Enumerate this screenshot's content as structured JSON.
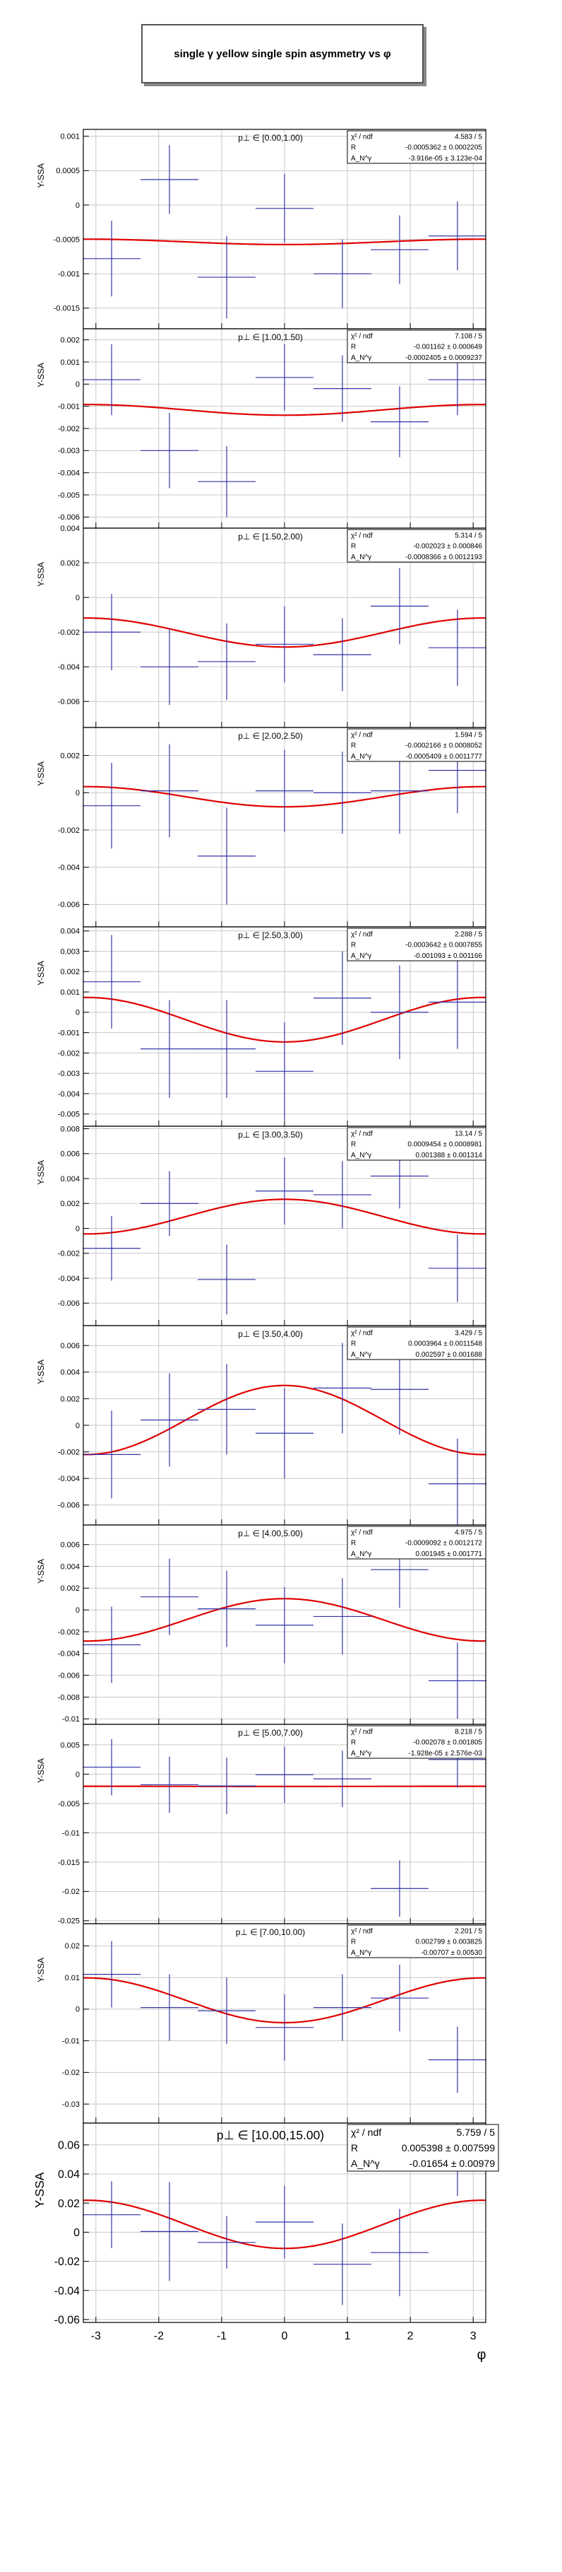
{
  "page_title": "single γ yellow single spin asymmetry vs φ",
  "xlabel": "φ",
  "colors": {
    "data": "#3333aa",
    "fit": "#e00000",
    "grid": "#c8c8c8",
    "frame": "#000000"
  },
  "chart_data": [
    {
      "type": "scatter",
      "bin_label": "p⊥ ∈ [0.00,1.00)",
      "ylabel": "Y-SSA",
      "ylim": [
        -0.0018,
        0.0011
      ],
      "yticks": [
        -0.0015,
        -0.001,
        -0.0005,
        0,
        0.0005,
        0.001
      ],
      "ytick_labels": [
        "-0.0015",
        "-0.001",
        "-0.0005",
        "0",
        "0.0005",
        "0.001"
      ],
      "stats": [
        [
          "χ² / ndf",
          "4.583 / 5"
        ],
        [
          "R",
          "-0.0005362 ± 0.0002205"
        ],
        [
          "A_N^γ",
          "-3.916e-05 ± 3.123e-04"
        ]
      ],
      "fit": {
        "R": -0.0005362,
        "A": -3.916e-05
      },
      "points": [
        {
          "x": -2.75,
          "y": -0.00078,
          "ey": 0.00055
        },
        {
          "x": -1.83,
          "y": 0.00037,
          "ey": 0.0005
        },
        {
          "x": -0.92,
          "y": -0.00105,
          "ey": 0.0006
        },
        {
          "x": 0,
          "y": -5e-05,
          "ey": 0.0005
        },
        {
          "x": 0.92,
          "y": -0.001,
          "ey": 0.0005
        },
        {
          "x": 1.83,
          "y": -0.00065,
          "ey": 0.0005
        },
        {
          "x": 2.75,
          "y": -0.00045,
          "ey": 0.0005
        }
      ]
    },
    {
      "type": "scatter",
      "bin_label": "p⊥ ∈ [1.00,1.50)",
      "ylabel": "Y-SSA",
      "ylim": [
        -0.0065,
        0.0025
      ],
      "yticks": [
        -0.006,
        -0.005,
        -0.004,
        -0.003,
        -0.002,
        -0.001,
        0,
        0.001,
        0.002
      ],
      "ytick_labels": [
        "-0.006",
        "-0.005",
        "-0.004",
        "-0.003",
        "-0.002",
        "-0.001",
        "0",
        "0.001",
        "0.002"
      ],
      "stats": [
        [
          "χ² / ndf",
          "7.108 / 5"
        ],
        [
          "R",
          "-0.001162 ± 0.000649"
        ],
        [
          "A_N^γ",
          "-0.0002405 ± 0.0009237"
        ]
      ],
      "fit": {
        "R": -0.001162,
        "A": -0.0002405
      },
      "points": [
        {
          "x": -2.75,
          "y": 0.0002,
          "ey": 0.0016
        },
        {
          "x": -1.83,
          "y": -0.003,
          "ey": 0.0017
        },
        {
          "x": -0.92,
          "y": -0.0044,
          "ey": 0.0016
        },
        {
          "x": 0,
          "y": 0.0003,
          "ey": 0.0015
        },
        {
          "x": 0.92,
          "y": -0.0002,
          "ey": 0.0015
        },
        {
          "x": 1.83,
          "y": -0.0017,
          "ey": 0.0016
        },
        {
          "x": 2.75,
          "y": 0.0002,
          "ey": 0.0016
        }
      ]
    },
    {
      "type": "scatter",
      "bin_label": "p⊥ ∈ [1.50,2.00)",
      "ylabel": "Y-SSA",
      "ylim": [
        -0.0075,
        0.004
      ],
      "yticks": [
        -0.006,
        -0.004,
        -0.002,
        0,
        0.002,
        0.004
      ],
      "ytick_labels": [
        "-0.006",
        "-0.004",
        "-0.002",
        "0",
        "0.002",
        "0.004"
      ],
      "stats": [
        [
          "χ² / ndf",
          "5.314 / 5"
        ],
        [
          "R",
          "-0.002023 ± 0.000846"
        ],
        [
          "A_N^γ",
          "-0.0008366 ± 0.0012193"
        ]
      ],
      "fit": {
        "R": -0.002023,
        "A": -0.0008366
      },
      "points": [
        {
          "x": -2.75,
          "y": -0.002,
          "ey": 0.0022
        },
        {
          "x": -1.83,
          "y": -0.004,
          "ey": 0.0022
        },
        {
          "x": -0.92,
          "y": -0.0037,
          "ey": 0.0022
        },
        {
          "x": 0,
          "y": -0.0027,
          "ey": 0.0022
        },
        {
          "x": 0.92,
          "y": -0.0033,
          "ey": 0.0021
        },
        {
          "x": 1.83,
          "y": -0.0005,
          "ey": 0.0022
        },
        {
          "x": 2.75,
          "y": -0.0029,
          "ey": 0.0022
        }
      ]
    },
    {
      "type": "scatter",
      "bin_label": "p⊥ ∈ [2.00,2.50)",
      "ylabel": "Y-SSA",
      "ylim": [
        -0.0072,
        0.0035
      ],
      "yticks": [
        -0.006,
        -0.004,
        -0.002,
        0,
        0.002
      ],
      "ytick_labels": [
        "-0.006",
        "-0.004",
        "-0.002",
        "0",
        "0.002"
      ],
      "stats": [
        [
          "χ² / ndf",
          "1.594 / 5"
        ],
        [
          "R",
          "-0.0002166 ± 0.0008052"
        ],
        [
          "A_N^γ",
          "-0.0005409 ± 0.0011777"
        ]
      ],
      "fit": {
        "R": -0.0002166,
        "A": -0.0005409
      },
      "points": [
        {
          "x": -2.75,
          "y": -0.0007,
          "ey": 0.0023
        },
        {
          "x": -1.83,
          "y": 0.0001,
          "ey": 0.0025
        },
        {
          "x": -0.92,
          "y": -0.0034,
          "ey": 0.0026
        },
        {
          "x": 0,
          "y": 0.0001,
          "ey": 0.0022
        },
        {
          "x": 0.92,
          "y": 0,
          "ey": 0.0022
        },
        {
          "x": 1.83,
          "y": 0.0001,
          "ey": 0.0023
        },
        {
          "x": 2.75,
          "y": 0.0012,
          "ey": 0.0023
        }
      ]
    },
    {
      "type": "scatter",
      "bin_label": "p⊥ ∈ [2.50,3.00)",
      "ylabel": "Y-SSA",
      "ylim": [
        -0.0056,
        0.0042
      ],
      "yticks": [
        -0.005,
        -0.004,
        -0.003,
        -0.002,
        -0.001,
        0,
        0.001,
        0.002,
        0.003,
        0.004
      ],
      "ytick_labels": [
        "-0.005",
        "-0.004",
        "-0.003",
        "-0.002",
        "-0.001",
        "0",
        "0.001",
        "0.002",
        "0.003",
        "0.004"
      ],
      "stats": [
        [
          "χ² / ndf",
          "2.288 / 5"
        ],
        [
          "R",
          "-0.0003642 ± 0.0007855"
        ],
        [
          "A_N^γ",
          "-0.001093 ± 0.001166"
        ]
      ],
      "fit": {
        "R": -0.0003642,
        "A": -0.001093
      },
      "points": [
        {
          "x": -2.75,
          "y": 0.0015,
          "ey": 0.0023
        },
        {
          "x": -1.83,
          "y": -0.0018,
          "ey": 0.0024
        },
        {
          "x": -0.92,
          "y": -0.0018,
          "ey": 0.0024
        },
        {
          "x": 0,
          "y": -0.0029,
          "ey": 0.0024
        },
        {
          "x": 0.92,
          "y": 0.0007,
          "ey": 0.0023
        },
        {
          "x": 1.83,
          "y": 0,
          "ey": 0.0023
        },
        {
          "x": 2.75,
          "y": 0.0005,
          "ey": 0.0023
        }
      ]
    },
    {
      "type": "scatter",
      "bin_label": "p⊥ ∈ [3.00,3.50)",
      "ylabel": "Y-SSA",
      "ylim": [
        -0.0078,
        0.0082
      ],
      "yticks": [
        -0.006,
        -0.004,
        -0.002,
        0,
        0.002,
        0.004,
        0.006,
        0.008
      ],
      "ytick_labels": [
        "-0.006",
        "-0.004",
        "-0.002",
        "0",
        "0.002",
        "0.004",
        "0.006",
        "0.008"
      ],
      "stats": [
        [
          "χ² / ndf",
          "13.14 / 5"
        ],
        [
          "R",
          "0.0009454 ± 0.0008981"
        ],
        [
          "A_N^γ",
          "0.001388 ± 0.001314"
        ]
      ],
      "fit": {
        "R": 0.0009454,
        "A": 0.001388
      },
      "points": [
        {
          "x": -2.75,
          "y": -0.0016,
          "ey": 0.0026
        },
        {
          "x": -1.83,
          "y": 0.002,
          "ey": 0.0026
        },
        {
          "x": -0.92,
          "y": -0.0041,
          "ey": 0.0028
        },
        {
          "x": 0,
          "y": 0.003,
          "ey": 0.0027
        },
        {
          "x": 0.92,
          "y": 0.0027,
          "ey": 0.0027
        },
        {
          "x": 1.83,
          "y": 0.0042,
          "ey": 0.0026
        },
        {
          "x": 2.75,
          "y": -0.0032,
          "ey": 0.0027
        }
      ]
    },
    {
      "type": "scatter",
      "bin_label": "p⊥ ∈ [3.50,4.00)",
      "ylabel": "Y-SSA",
      "ylim": [
        -0.0075,
        0.0075
      ],
      "yticks": [
        -0.006,
        -0.004,
        -0.002,
        0,
        0.002,
        0.004,
        0.006
      ],
      "ytick_labels": [
        "-0.006",
        "-0.004",
        "-0.002",
        "0",
        "0.002",
        "0.004",
        "0.006"
      ],
      "stats": [
        [
          "χ² / ndf",
          "3.429 / 5"
        ],
        [
          "R",
          "0.0003964 ± 0.0011548"
        ],
        [
          "A_N^γ",
          "0.002597 ± 0.001688"
        ]
      ],
      "fit": {
        "R": 0.0003964,
        "A": 0.002597
      },
      "points": [
        {
          "x": -2.75,
          "y": -0.0022,
          "ey": 0.0033
        },
        {
          "x": -1.83,
          "y": 0.0004,
          "ey": 0.0035
        },
        {
          "x": -0.92,
          "y": 0.0012,
          "ey": 0.0034
        },
        {
          "x": 0,
          "y": -0.0006,
          "ey": 0.0034
        },
        {
          "x": 0.92,
          "y": 0.0028,
          "ey": 0.0034
        },
        {
          "x": 1.83,
          "y": 0.0027,
          "ey": 0.0034
        },
        {
          "x": 2.75,
          "y": -0.0044,
          "ey": 0.0034
        }
      ]
    },
    {
      "type": "scatter",
      "bin_label": "p⊥ ∈ [4.00,5.00)",
      "ylabel": "Y-SSA",
      "ylim": [
        -0.0105,
        0.0078
      ],
      "yticks": [
        -0.01,
        -0.008,
        -0.006,
        -0.004,
        -0.002,
        0,
        0.002,
        0.004,
        0.006
      ],
      "ytick_labels": [
        "-0.01",
        "-0.008",
        "-0.006",
        "-0.004",
        "-0.002",
        "0",
        "0.002",
        "0.004",
        "0.006"
      ],
      "stats": [
        [
          "χ² / ndf",
          "4.975 / 5"
        ],
        [
          "R",
          "-0.0009092 ± 0.0012172"
        ],
        [
          "A_N^γ",
          "0.001945 ± 0.001771"
        ]
      ],
      "fit": {
        "R": -0.0009092,
        "A": 0.001945
      },
      "points": [
        {
          "x": -2.75,
          "y": -0.0032,
          "ey": 0.0035
        },
        {
          "x": -1.83,
          "y": 0.0012,
          "ey": 0.0035
        },
        {
          "x": -0.92,
          "y": 0.0001,
          "ey": 0.0035
        },
        {
          "x": 0,
          "y": -0.0014,
          "ey": 0.0035
        },
        {
          "x": 0.92,
          "y": -0.0006,
          "ey": 0.0035
        },
        {
          "x": 1.83,
          "y": 0.0037,
          "ey": 0.0035
        },
        {
          "x": 2.75,
          "y": -0.0065,
          "ey": 0.0035
        }
      ]
    },
    {
      "type": "scatter",
      "bin_label": "p⊥ ∈ [5.00,7.00)",
      "ylabel": "Y-SSA",
      "ylim": [
        -0.0255,
        0.0085
      ],
      "yticks": [
        -0.025,
        -0.02,
        -0.015,
        -0.01,
        -0.005,
        0,
        0.005
      ],
      "ytick_labels": [
        "-0.025",
        "-0.02",
        "-0.015",
        "-0.01",
        "-0.005",
        "0",
        "0.005"
      ],
      "stats": [
        [
          "χ² / ndf",
          "8.218 / 5"
        ],
        [
          "R",
          "-0.002078 ± 0.001805"
        ],
        [
          "A_N^γ",
          "-1.928e-05 ± 2.576e-03"
        ]
      ],
      "fit": {
        "R": -0.002078,
        "A": -1.928e-05
      },
      "points": [
        {
          "x": -2.75,
          "y": 0.0012,
          "ey": 0.0048
        },
        {
          "x": -1.83,
          "y": -0.0018,
          "ey": 0.0048
        },
        {
          "x": -0.92,
          "y": -0.002,
          "ey": 0.0048
        },
        {
          "x": 0,
          "y": -0.0001,
          "ey": 0.0048
        },
        {
          "x": 0.92,
          "y": -0.0008,
          "ey": 0.0048
        },
        {
          "x": 1.83,
          "y": -0.0195,
          "ey": 0.0048
        },
        {
          "x": 2.75,
          "y": 0.0025,
          "ey": 0.0048
        }
      ]
    },
    {
      "type": "scatter",
      "bin_label": "p⊥ ∈ [7.00,10.00)",
      "ylabel": "Y-SSA",
      "ylim": [
        -0.036,
        0.027
      ],
      "yticks": [
        -0.03,
        -0.02,
        -0.01,
        0,
        0.01,
        0.02
      ],
      "ytick_labels": [
        "-0.03",
        "-0.02",
        "-0.01",
        "0",
        "0.01",
        "0.02"
      ],
      "stats": [
        [
          "χ² / ndf",
          "2.201 / 5"
        ],
        [
          "R",
          "0.002799 ± 0.003825"
        ],
        [
          "A_N^γ",
          "-0.00707 ± 0.00530"
        ]
      ],
      "fit": {
        "R": 0.002799,
        "A": -0.00707
      },
      "points": [
        {
          "x": -2.75,
          "y": 0.011,
          "ey": 0.0105
        },
        {
          "x": -1.83,
          "y": 0.0005,
          "ey": 0.0105
        },
        {
          "x": -0.92,
          "y": -0.0005,
          "ey": 0.0105
        },
        {
          "x": 0,
          "y": -0.0058,
          "ey": 0.0105
        },
        {
          "x": 0.92,
          "y": 0.0005,
          "ey": 0.0105
        },
        {
          "x": 1.83,
          "y": 0.0035,
          "ey": 0.0105
        },
        {
          "x": 2.75,
          "y": -0.016,
          "ey": 0.0105
        }
      ]
    },
    {
      "type": "scatter",
      "bin_label": "p⊥ ∈ [10.00,15.00)",
      "ylabel": "Y-SSA",
      "ylim": [
        -0.062,
        0.075
      ],
      "yticks": [
        -0.06,
        -0.04,
        -0.02,
        0,
        0.02,
        0.04,
        0.06
      ],
      "ytick_labels": [
        "-0.06",
        "-0.04",
        "-0.02",
        "0",
        "0.02",
        "0.04",
        "0.06"
      ],
      "xticks": [
        -3,
        -2,
        -1,
        0,
        1,
        2,
        3
      ],
      "xtick_labels": [
        "-3",
        "-2",
        "-1",
        "0",
        "1",
        "2",
        "3"
      ],
      "stats": [
        [
          "χ² / ndf",
          "5.759 / 5"
        ],
        [
          "R",
          "0.005398 ± 0.007599"
        ],
        [
          "A_N^γ",
          "-0.01654 ± 0.00979"
        ]
      ],
      "fit": {
        "R": 0.005398,
        "A": -0.01654
      },
      "points": [
        {
          "x": -2.75,
          "y": 0.012,
          "ey": 0.023
        },
        {
          "x": -1.83,
          "y": 0.0005,
          "ey": 0.034
        },
        {
          "x": -0.92,
          "y": -0.007,
          "ey": 0.018
        },
        {
          "x": 0,
          "y": 0.007,
          "ey": 0.025
        },
        {
          "x": 0.92,
          "y": -0.022,
          "ey": 0.028
        },
        {
          "x": 1.83,
          "y": -0.014,
          "ey": 0.03
        },
        {
          "x": 2.75,
          "y": 0.052,
          "ey": 0.027
        }
      ]
    }
  ]
}
